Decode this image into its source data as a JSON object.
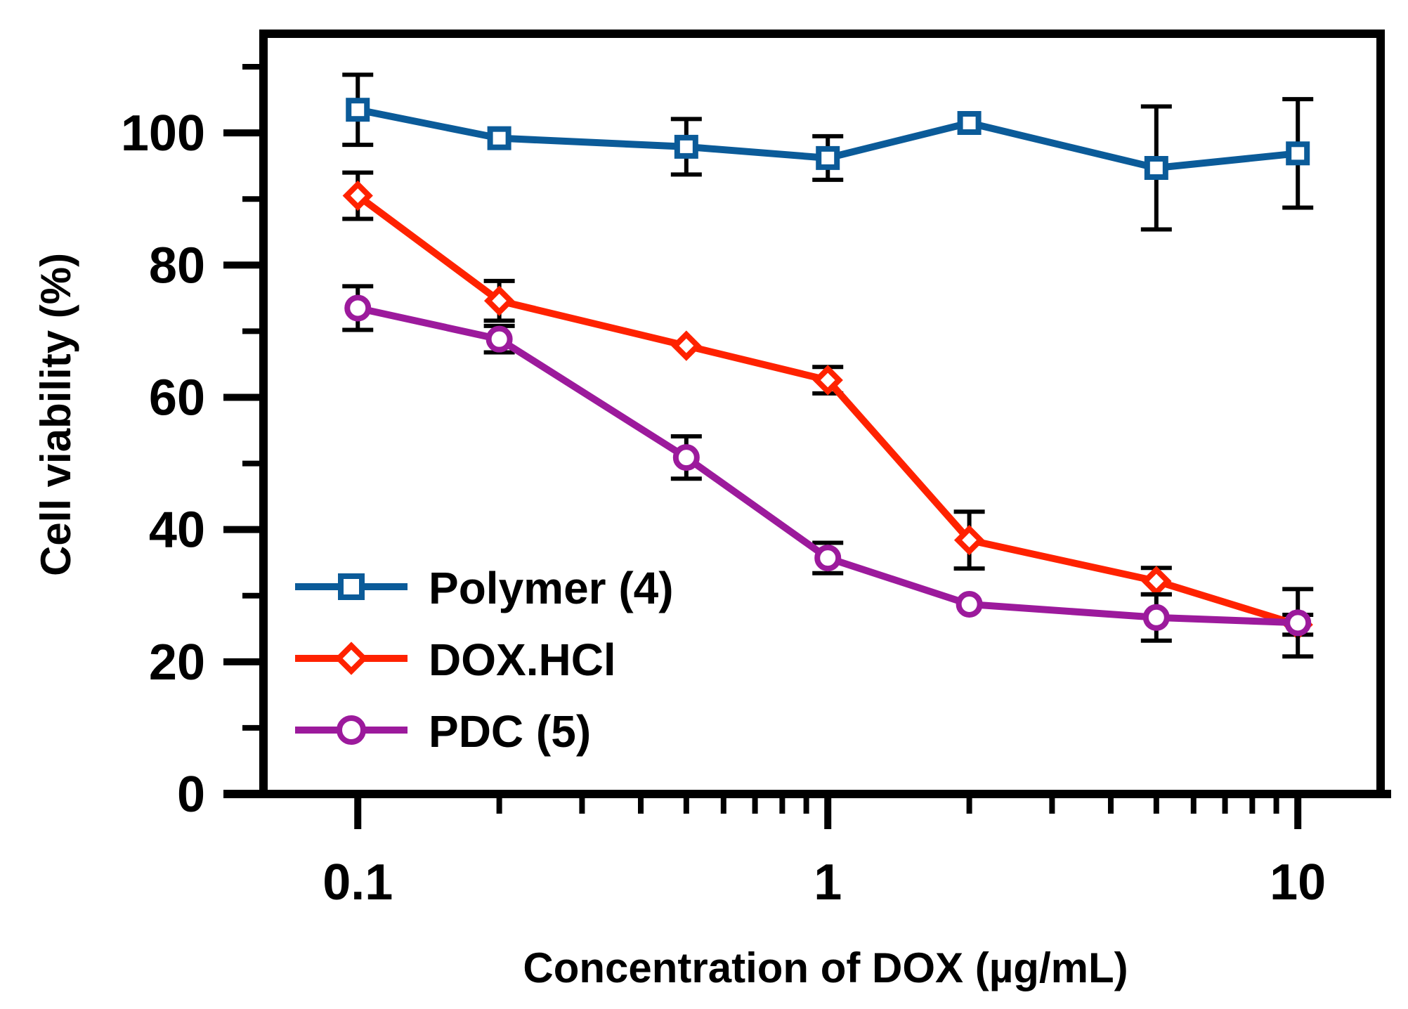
{
  "chart_data": {
    "type": "line",
    "title": "",
    "xlabel": "Concentration of DOX (µg/mL)",
    "ylabel": "Cell viability (%)",
    "x_scale": "log",
    "xlim": [
      0.063,
      15
    ],
    "ylim": [
      0,
      115
    ],
    "x_ticks": [
      0.1,
      1,
      10
    ],
    "x_tick_labels": [
      "0.1",
      "1",
      "10"
    ],
    "y_ticks": [
      0,
      20,
      40,
      60,
      80,
      100
    ],
    "y_tick_labels": [
      "0",
      "20",
      "40",
      "60",
      "80",
      "100"
    ],
    "grid": false,
    "legend_position": "bottom-left",
    "x": [
      0.1,
      0.2,
      0.5,
      1,
      2,
      5,
      10
    ],
    "series": [
      {
        "name": "Polymer (4)",
        "marker": "square",
        "color": "#0b5b99",
        "values": [
          103.5,
          99.2,
          97.9,
          96.2,
          101.5,
          94.7,
          96.9
        ],
        "errors": [
          5.3,
          0,
          4.2,
          3.3,
          0,
          9.3,
          8.2
        ]
      },
      {
        "name": "DOX.HCl",
        "marker": "diamond",
        "color": "#ff2200",
        "values": [
          90.5,
          74.6,
          67.8,
          62.6,
          38.4,
          32.2,
          25.6
        ],
        "errors": [
          3.5,
          3.0,
          0,
          2.0,
          4.3,
          2.0,
          1.5
        ]
      },
      {
        "name": "PDC (5)",
        "marker": "circle",
        "color": "#9c1a9c",
        "values": [
          73.5,
          68.8,
          50.9,
          35.7,
          28.7,
          26.7,
          25.9
        ],
        "errors": [
          3.3,
          2.0,
          3.2,
          2.3,
          0,
          3.5,
          5.1
        ]
      }
    ]
  }
}
